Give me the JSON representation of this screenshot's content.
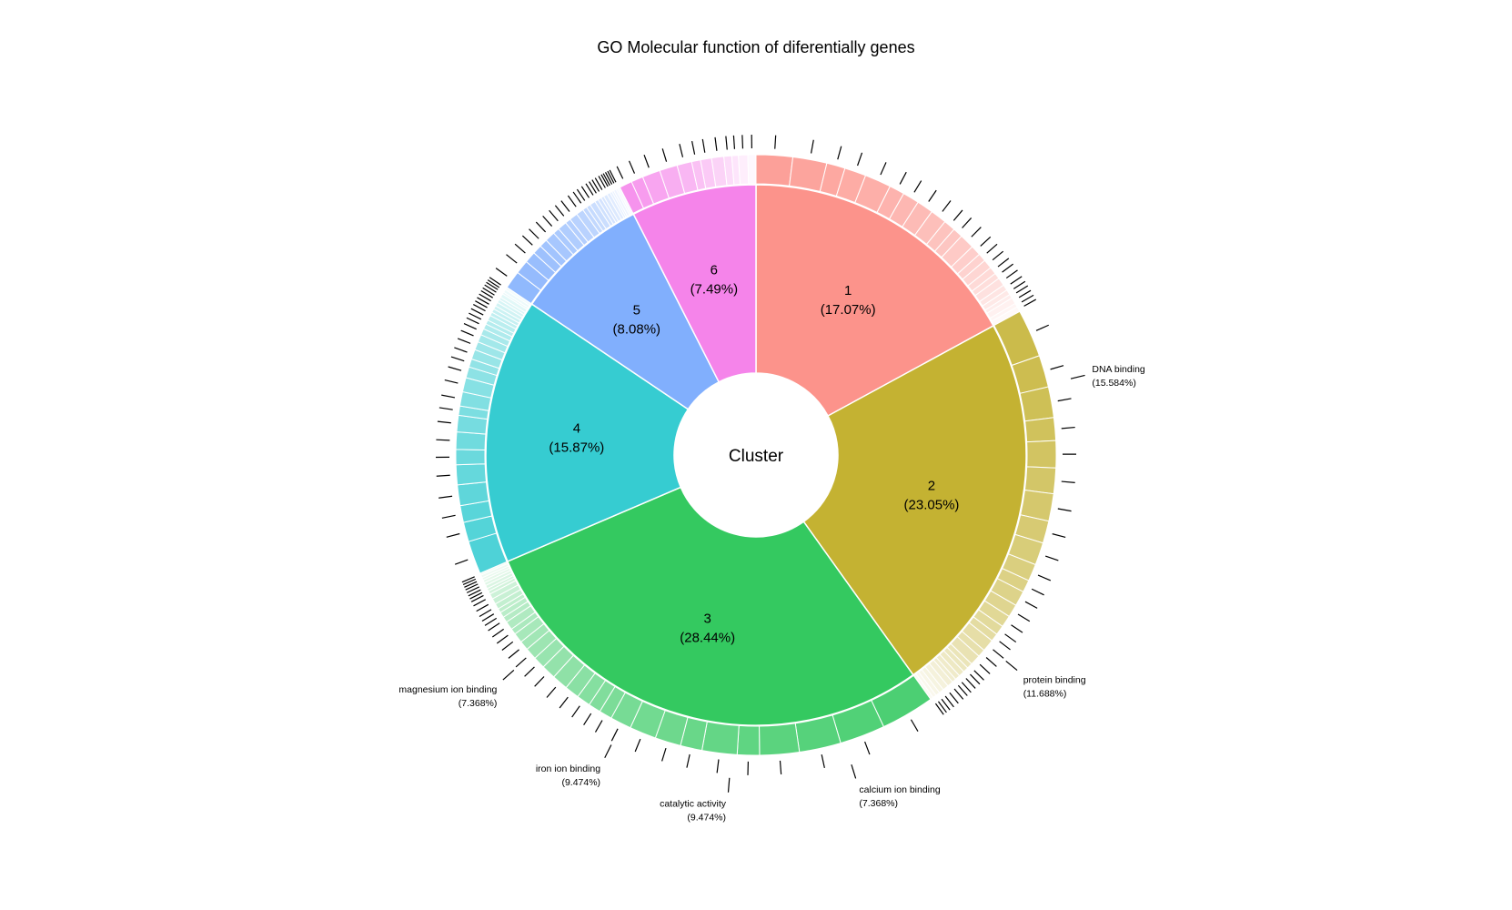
{
  "chart_data": {
    "type": "pie",
    "subtype": "sunburst",
    "title": "GO Molecular function of diferentially genes",
    "center_label": "Cluster",
    "clusters": [
      {
        "id": "1",
        "pct_label": "(17.07%)",
        "value": 17.07,
        "color": "#FC938B",
        "leaves": 24
      },
      {
        "id": "2",
        "pct_label": "(23.05%)",
        "value": 23.05,
        "color": "#C4B232",
        "leaves": 30
      },
      {
        "id": "3",
        "pct_label": "(28.44%)",
        "value": 28.44,
        "color": "#34C960",
        "leaves": 36
      },
      {
        "id": "4",
        "pct_label": "(15.87%)",
        "value": 15.87,
        "color": "#36CCD1",
        "leaves": 30
      },
      {
        "id": "5",
        "pct_label": "(8.08%)",
        "value": 8.08,
        "color": "#81AFFD",
        "leaves": 24
      },
      {
        "id": "6",
        "pct_label": "(7.49%)",
        "value": 7.49,
        "color": "#F584EA",
        "leaves": 12
      }
    ],
    "annotations": [
      {
        "term": "DNA binding",
        "pct": "(15.584%)",
        "cluster": "2"
      },
      {
        "term": "protein binding",
        "pct": "(11.688%)",
        "cluster": "2"
      },
      {
        "term": "calcium ion binding",
        "pct": "(7.368%)",
        "cluster": "3"
      },
      {
        "term": "catalytic activity",
        "pct": "(9.474%)",
        "cluster": "3"
      },
      {
        "term": "iron ion binding",
        "pct": "(9.474%)",
        "cluster": "3"
      },
      {
        "term": "magnesium ion binding",
        "pct": "(7.368%)",
        "cluster": "3"
      }
    ]
  }
}
